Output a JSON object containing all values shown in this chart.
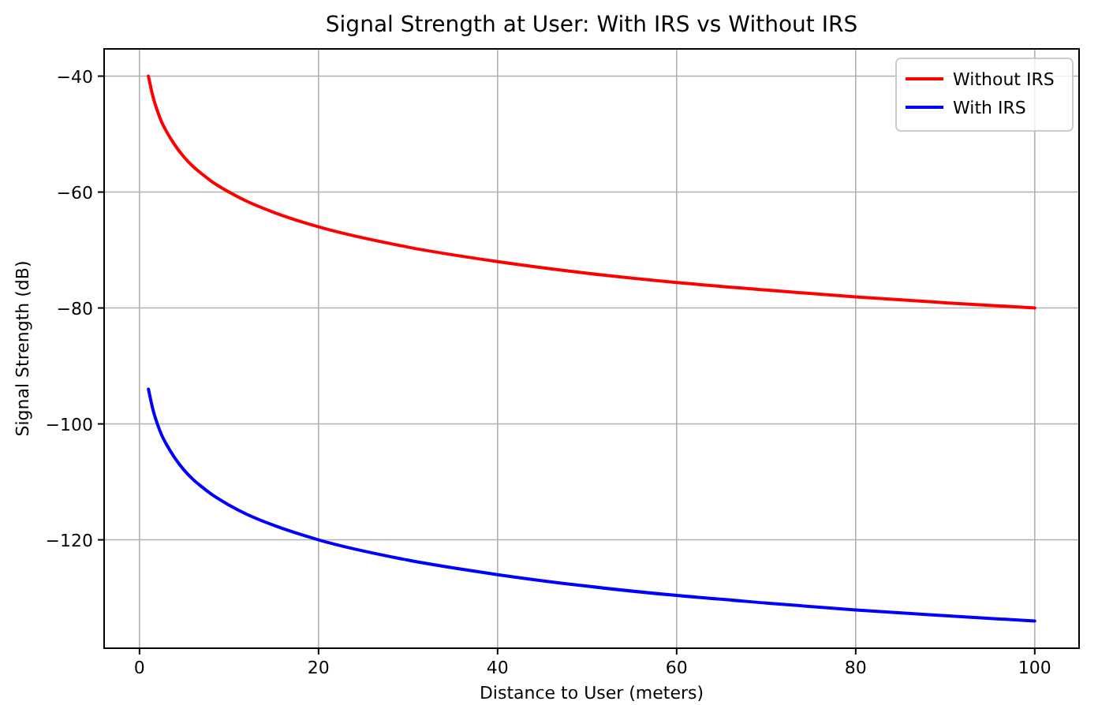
{
  "chart_data": {
    "type": "line",
    "title": "Signal Strength at User: With IRS vs Without IRS",
    "xlabel": "Distance to User (meters)",
    "ylabel": "Signal Strength (dB)",
    "x": [
      1,
      1.5,
      2,
      2.5,
      3,
      4,
      5,
      6,
      7,
      8,
      10,
      12,
      15,
      20,
      30,
      40,
      50,
      60,
      70,
      80,
      90,
      100
    ],
    "series": [
      {
        "name": "Without IRS",
        "color": "#ff0000",
        "values": [
          -40,
          -43.5,
          -46,
          -48,
          -49.5,
          -52,
          -54,
          -55.6,
          -56.9,
          -58.1,
          -60,
          -61.6,
          -63.5,
          -66,
          -69.5,
          -72,
          -74,
          -75.6,
          -76.9,
          -78.1,
          -79.1,
          -80
        ]
      },
      {
        "name": "With IRS",
        "color": "#0000ff",
        "values": [
          -94,
          -97.5,
          -100,
          -102,
          -103.5,
          -106,
          -108,
          -109.6,
          -110.9,
          -112.1,
          -114,
          -115.6,
          -117.5,
          -120,
          -123.5,
          -126,
          -128,
          -129.6,
          -130.9,
          -132.1,
          -133.1,
          -134
        ]
      }
    ],
    "xlim": [
      -3.95,
      104.95
    ],
    "ylim": [
      -138.7,
      -35.3
    ],
    "xticks": [
      0,
      20,
      40,
      60,
      80,
      100
    ],
    "yticks": [
      -40,
      -60,
      -80,
      -100,
      -120
    ],
    "grid": true,
    "legend": "top right",
    "line_style": "solid"
  }
}
